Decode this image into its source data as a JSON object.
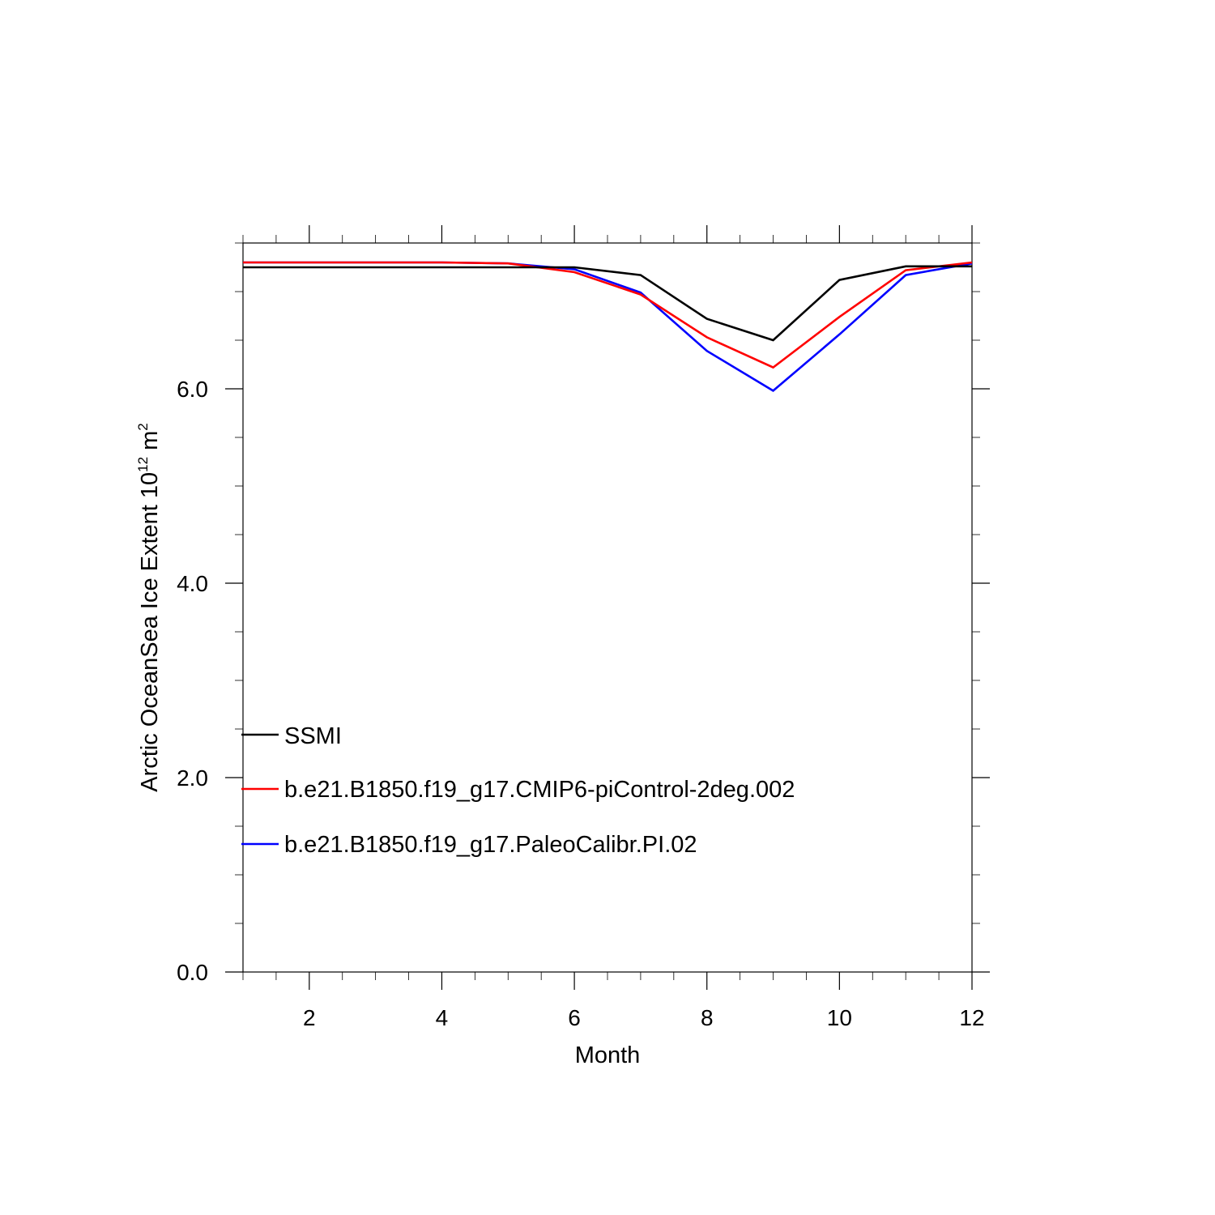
{
  "chart_data": {
    "type": "line",
    "title": "",
    "xlabel": "Month",
    "ylabel": {
      "main": "Arctic OceanSea Ice Extent 10",
      "sup1": "12",
      "unit": " m",
      "sup2": "2"
    },
    "xlim": [
      1,
      12
    ],
    "ylim": [
      0,
      7.5
    ],
    "xticks": [
      2,
      4,
      6,
      8,
      10,
      12
    ],
    "xtick_labels": [
      "2",
      "4",
      "6",
      "8",
      "10",
      "12"
    ],
    "yticks": [
      0,
      2,
      4,
      6
    ],
    "ytick_labels": [
      "0.0",
      "2.0",
      "4.0",
      "6.0"
    ],
    "grid": false,
    "legend_position": "lower-left",
    "x": [
      1,
      2,
      3,
      4,
      5,
      6,
      7,
      8,
      9,
      10,
      11,
      12
    ],
    "series": [
      {
        "name": "SSMI",
        "color": "#000000",
        "values": [
          7.25,
          7.25,
          7.25,
          7.25,
          7.25,
          7.25,
          7.17,
          6.72,
          6.5,
          7.12,
          7.26,
          7.26
        ]
      },
      {
        "name": "b.e21.B1850.f19_g17.CMIP6-piControl-2deg.002",
        "color": "#ff0000",
        "values": [
          7.3,
          7.3,
          7.3,
          7.3,
          7.29,
          7.2,
          6.97,
          6.53,
          6.22,
          6.74,
          7.22,
          7.3
        ]
      },
      {
        "name": "b.e21.B1850.f19_g17.PaleoCalibr.PI.02",
        "color": "#0000ff",
        "values": [
          7.3,
          7.3,
          7.3,
          7.3,
          7.29,
          7.23,
          6.99,
          6.39,
          5.98,
          6.56,
          7.17,
          7.29
        ]
      }
    ]
  }
}
